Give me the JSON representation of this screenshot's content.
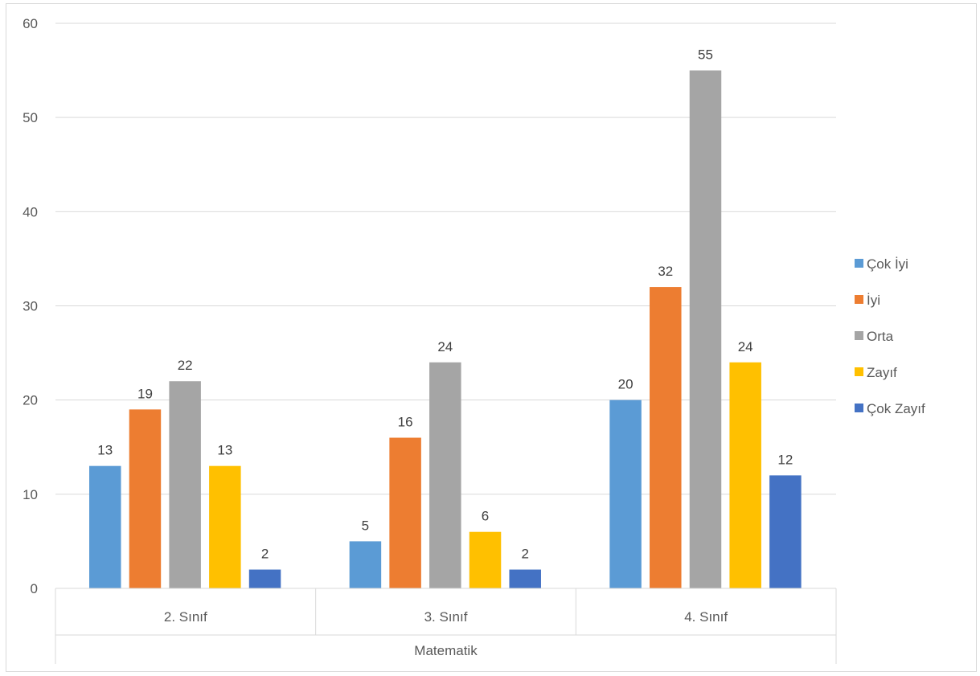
{
  "chart_data": {
    "type": "bar",
    "group_label": "Matematik",
    "categories": [
      "2. Sınıf",
      "3. Sınıf",
      "4. Sınıf"
    ],
    "series": [
      {
        "name": "Çok İyi",
        "color": "#5b9bd5",
        "values": [
          13,
          5,
          20
        ]
      },
      {
        "name": "İyi",
        "color": "#ed7d31",
        "values": [
          19,
          16,
          32
        ]
      },
      {
        "name": "Orta",
        "color": "#a5a5a5",
        "values": [
          22,
          24,
          55
        ]
      },
      {
        "name": "Zayıf",
        "color": "#ffc000",
        "values": [
          13,
          6,
          24
        ]
      },
      {
        "name": "Çok Zayıf",
        "color": "#4472c4",
        "values": [
          2,
          2,
          12
        ]
      }
    ],
    "ylim": [
      0,
      60
    ],
    "yticks": [
      0,
      10,
      20,
      30,
      40,
      50,
      60
    ],
    "grid": true,
    "legend_position": "right",
    "data_labels": true
  }
}
